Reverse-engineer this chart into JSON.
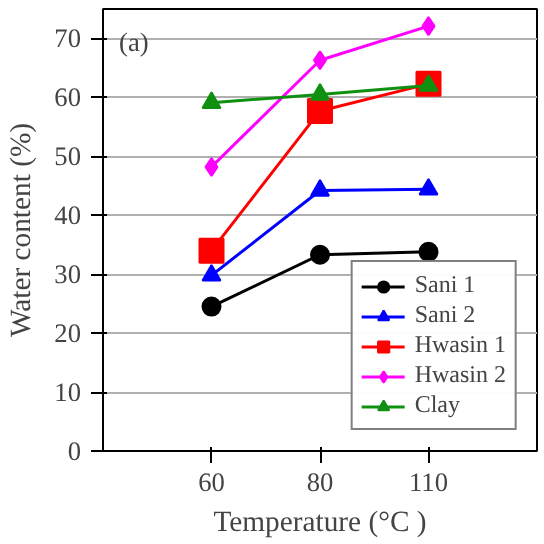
{
  "chart_data": {
    "type": "line",
    "xlabel": "Temperature (°C )",
    "ylabel": "Water content (%)",
    "categories": [
      "60",
      "80",
      "110"
    ],
    "ylim": [
      0,
      75
    ],
    "yticks": [
      0,
      10,
      20,
      30,
      40,
      50,
      60,
      70
    ],
    "grid": "y",
    "legend": "bottom right",
    "annotations": [
      "(a)"
    ],
    "series": [
      {
        "name": "Sani 1",
        "color": "#000000",
        "marker": "circle",
        "values": [
          24.5,
          33.3,
          33.8
        ]
      },
      {
        "name": "Sani 2",
        "color": "#0000ff",
        "marker": "triangle",
        "values": [
          29.8,
          44.2,
          44.4
        ]
      },
      {
        "name": "Hwasin 1",
        "color": "#ff0000",
        "marker": "square",
        "values": [
          34.0,
          57.7,
          62.3
        ]
      },
      {
        "name": "Hwasin 2",
        "color": "#ff00ff",
        "marker": "diamond",
        "values": [
          48.2,
          66.3,
          72.1
        ]
      },
      {
        "name": "Clay",
        "color": "#109010",
        "marker": "triangle",
        "values": [
          59.1,
          60.5,
          62.0
        ]
      }
    ]
  }
}
